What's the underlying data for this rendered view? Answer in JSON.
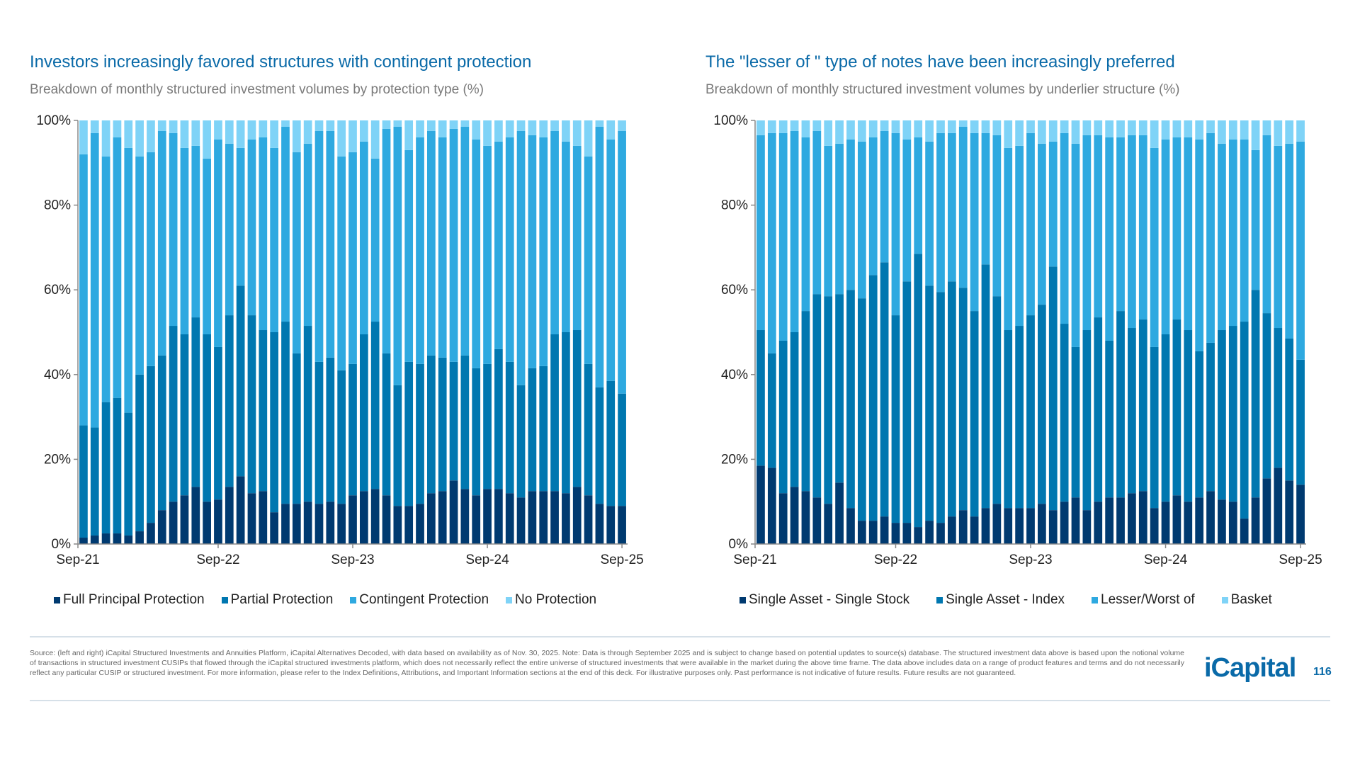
{
  "colors": {
    "title": "#0a6aa8",
    "dark_navy": "#003a70",
    "mid_blue": "#0077b0",
    "sky_blue": "#2ea9e0",
    "light_blue": "#7fd3f7"
  },
  "left": {
    "title": "Investors increasingly favored structures with contingent protection",
    "subtitle": "Breakdown of monthly structured investment volumes by protection type (%)"
  },
  "right": {
    "title": "The \"lesser of \" type of notes have been increasingly preferred",
    "subtitle": "Breakdown of monthly structured investment volumes by underlier structure (%)"
  },
  "chart_data": [
    {
      "type": "bar",
      "stacked": true,
      "title": "Investors increasingly favored structures with contingent protection",
      "x_range": [
        "Sep-21",
        "Sep-25"
      ],
      "x_ticks": [
        "Sep-21",
        "Sep-22",
        "Sep-23",
        "Sep-24",
        "Sep-25"
      ],
      "y_ticks": [
        "0%",
        "20%",
        "40%",
        "60%",
        "80%",
        "100%"
      ],
      "ylim": [
        0,
        100
      ],
      "grid": false,
      "legend_position": "bottom",
      "series": [
        {
          "name": "Full Principal Protection",
          "color": "#003a70",
          "values": [
            1.5,
            2,
            2.5,
            2.5,
            2,
            3,
            5,
            8,
            10,
            11.5,
            13.5,
            10,
            10.5,
            13.5,
            16,
            12,
            12.5,
            7.5,
            9.5,
            9.5,
            10,
            9.5,
            10,
            9.5,
            11.5,
            12.5,
            13,
            11.5,
            9,
            9,
            9.5,
            12,
            12.5,
            15,
            13,
            11.5,
            13,
            13,
            12,
            11,
            12.5,
            12.5,
            12.5,
            12,
            13.5,
            11.5,
            9.5,
            9,
            9
          ]
        },
        {
          "name": "Partial Protection",
          "color": "#0077b0",
          "values": [
            26.5,
            25.5,
            31,
            32,
            29,
            37,
            37,
            36.5,
            41.5,
            38,
            40,
            39.5,
            36,
            40.5,
            45,
            42,
            38,
            42.5,
            43,
            35.5,
            41.5,
            33.5,
            34,
            31.5,
            31,
            37,
            39.5,
            33.5,
            28.5,
            34,
            33,
            32.5,
            31.5,
            28,
            31.5,
            30,
            29.5,
            33,
            31,
            26.5,
            29,
            29.5,
            37,
            38,
            37,
            31,
            27.5,
            29.5,
            26.5
          ]
        },
        {
          "name": "Contingent Protection",
          "color": "#2ea9e0",
          "values": [
            64,
            69.5,
            58,
            61.5,
            62.5,
            51.5,
            50.5,
            53,
            45.5,
            44,
            40.5,
            41.5,
            49,
            40.5,
            32.5,
            41.5,
            45.5,
            43.5,
            46,
            47.5,
            43,
            54.5,
            53.5,
            50.5,
            50,
            45.5,
            38.5,
            53,
            61,
            50,
            53.5,
            53,
            52,
            55,
            54,
            54,
            51.5,
            49,
            53,
            60,
            55,
            54,
            48,
            45,
            43.5,
            49,
            61.5,
            57,
            62
          ]
        },
        {
          "name": "No Protection",
          "color": "#7fd3f7",
          "values": [
            8,
            3,
            8.5,
            4,
            6.5,
            8.5,
            7.5,
            2.5,
            3,
            6.5,
            6,
            9,
            4.5,
            5.5,
            6.5,
            4.5,
            4,
            6.5,
            1.5,
            7.5,
            5.5,
            2.5,
            2.5,
            8.5,
            7.5,
            5,
            9,
            2,
            1.5,
            7,
            4,
            2.5,
            4,
            2,
            1.5,
            4.5,
            6,
            5,
            4,
            2.5,
            3.5,
            4,
            2.5,
            5,
            6,
            8.5,
            1.5,
            4.5,
            2.5
          ]
        }
      ]
    },
    {
      "type": "bar",
      "stacked": true,
      "title": "The \"lesser of \" type of notes have been increasingly preferred",
      "x_range": [
        "Sep-21",
        "Sep-25"
      ],
      "x_ticks": [
        "Sep-21",
        "Sep-22",
        "Sep-23",
        "Sep-24",
        "Sep-25"
      ],
      "y_ticks": [
        "0%",
        "20%",
        "40%",
        "60%",
        "80%",
        "100%"
      ],
      "ylim": [
        0,
        100
      ],
      "grid": false,
      "legend_position": "bottom",
      "series": [
        {
          "name": "Single Asset - Single Stock",
          "color": "#003a70",
          "values": [
            18.5,
            18,
            12,
            13.5,
            12.5,
            11,
            9.5,
            14.5,
            8.5,
            5.5,
            5.5,
            6.5,
            5,
            5,
            4,
            5.5,
            5,
            6.5,
            8,
            6.5,
            8.5,
            9.5,
            8.5,
            8.5,
            8.5,
            9.5,
            8,
            10,
            11,
            8,
            10,
            11,
            11,
            12,
            12.5,
            8.5,
            10,
            11.5,
            10,
            11,
            12.5,
            10.5,
            10,
            6,
            11,
            15.5,
            18,
            15,
            14
          ]
        },
        {
          "name": "Single Asset - Index",
          "color": "#0077b0",
          "values": [
            32,
            27,
            36,
            36.5,
            42.5,
            48,
            49,
            44.5,
            51.5,
            52.5,
            58,
            60,
            49,
            57,
            64.5,
            55.5,
            54.5,
            55.5,
            52.5,
            48.5,
            57.5,
            49,
            42,
            43,
            45.5,
            47,
            57.5,
            42,
            35.5,
            42.5,
            43.5,
            37,
            44,
            39,
            40.5,
            38,
            39.5,
            41.5,
            40.5,
            34.5,
            35,
            40,
            41.5,
            46.5,
            49,
            39,
            33,
            33.5,
            29.5
          ]
        },
        {
          "name": "Lesser/Worst of",
          "color": "#2ea9e0",
          "values": [
            46,
            52,
            49,
            47.5,
            41,
            38.5,
            35.5,
            35.5,
            35.5,
            37,
            32.5,
            31,
            43,
            33.5,
            27.5,
            34,
            37.5,
            35,
            38,
            42,
            31,
            38,
            43,
            42.5,
            43,
            38,
            29.5,
            45,
            48,
            46,
            43,
            48,
            41,
            45.5,
            43.5,
            47,
            46,
            43,
            45.5,
            50,
            49.5,
            44,
            44,
            43,
            33,
            42,
            43,
            46,
            51.5
          ]
        },
        {
          "name": "Basket",
          "color": "#7fd3f7",
          "values": [
            3.5,
            3,
            3,
            2.5,
            4,
            2.5,
            6,
            5.5,
            4.5,
            5,
            4,
            2.5,
            3,
            4.5,
            4,
            5,
            3,
            3,
            1.5,
            3,
            3,
            3.5,
            6.5,
            6,
            3,
            5.5,
            5,
            3,
            5.5,
            3.5,
            3.5,
            4,
            4,
            3.5,
            3.5,
            6.5,
            4.5,
            4,
            4,
            4.5,
            3,
            5.5,
            4.5,
            4.5,
            7,
            3.5,
            6,
            5.5,
            5
          ]
        }
      ]
    }
  ],
  "footer": {
    "source": "Source: (left and right) iCapital Structured Investments and Annuities Platform, iCapital Alternatives Decoded, with data based on availability as of Nov. 30, 2025. Note: Data is through September 2025 and is subject to change based on potential updates to source(s) database. The structured investment data above is based upon the notional volume of transactions in structured investment CUSIPs that flowed through the iCapital structured investments platform, which does not necessarily reflect the entire universe of structured investments that were available in the market during the above time frame. The data above includes data on a range of product features and terms and do not necessarily reflect any particular CUSIP or structured investment. For more information, please refer to the Index Definitions, Attributions, and Important Information sections at the end of this deck. For illustrative purposes only. Past performance is not indicative of future results. Future results are not guaranteed.",
    "logo": "iCapital",
    "page_number": "116"
  }
}
